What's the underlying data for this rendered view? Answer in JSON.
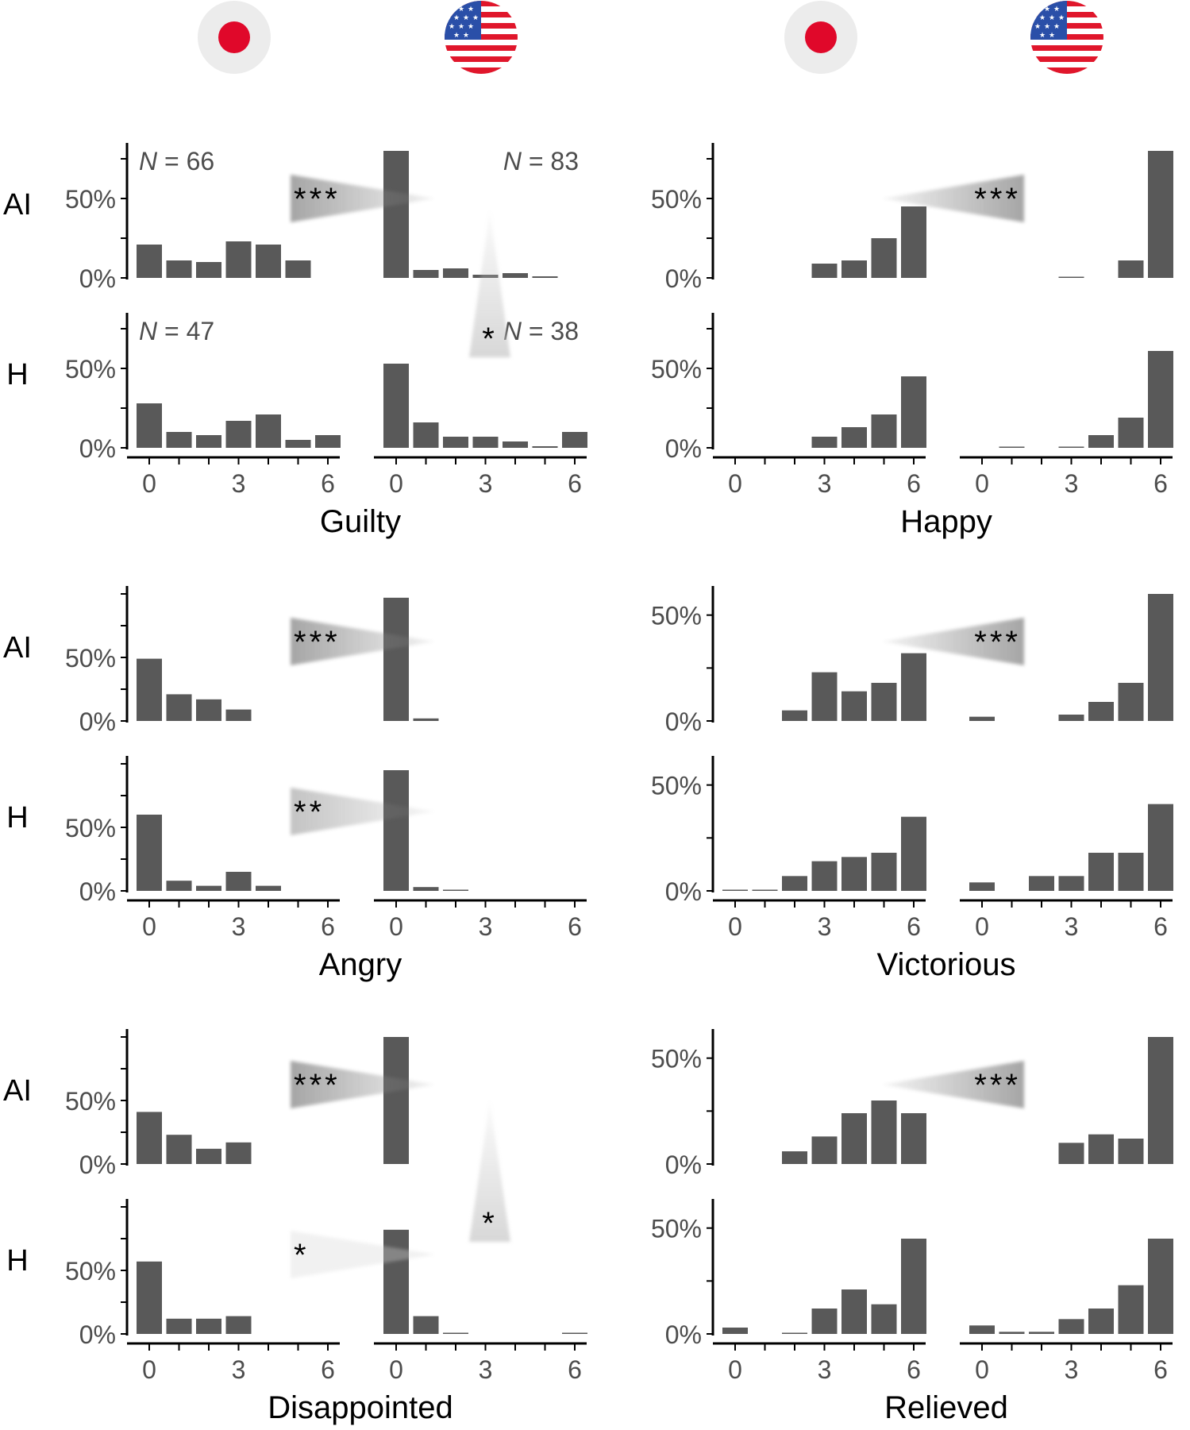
{
  "figure": {
    "flags": [
      {
        "country": "Japan",
        "icon": "japan-flag-icon"
      },
      {
        "country": "USA",
        "icon": "usa-flag-icon"
      },
      {
        "country": "Japan",
        "icon": "japan-flag-icon"
      },
      {
        "country": "USA",
        "icon": "usa-flag-icon"
      }
    ],
    "row_labels": [
      "AI",
      "H"
    ],
    "y_tick_labels": [
      "0%",
      "50%"
    ],
    "x_tick_labels": [
      "0",
      "3",
      "6"
    ],
    "n_prefix": "N",
    "colors": {
      "bar": "#595959",
      "axis": "#000000",
      "text": "#4d4d4d",
      "arrow": "#9a9a9a"
    }
  },
  "chart_data": [
    {
      "type": "bar",
      "title": "Guilty",
      "xlabel": "Guilty",
      "ylabel": "",
      "categories": [
        0,
        1,
        2,
        3,
        4,
        5,
        6
      ],
      "ylim": [
        0,
        80
      ],
      "series": [
        {
          "name": "AI Japan",
          "n": "= 66",
          "values": [
            21,
            11,
            10,
            23,
            21,
            11,
            0
          ]
        },
        {
          "name": "AI USA",
          "n": "= 83",
          "values": [
            80,
            5,
            6,
            2,
            3,
            1,
            0
          ]
        },
        {
          "name": "H Japan",
          "n": "= 47",
          "values": [
            28,
            10,
            8,
            17,
            21,
            5,
            8
          ]
        },
        {
          "name": "H USA",
          "n": "= 38",
          "values": [
            53,
            16,
            7,
            7,
            4,
            1,
            10
          ]
        }
      ],
      "annotations": [
        {
          "label": "***",
          "between": "AI Japan vs AI USA"
        },
        {
          "label": "*",
          "between": "AI USA vs H USA"
        }
      ]
    },
    {
      "type": "bar",
      "title": "Happy",
      "xlabel": "Happy",
      "ylabel": "",
      "categories": [
        0,
        1,
        2,
        3,
        4,
        5,
        6
      ],
      "ylim": [
        0,
        80
      ],
      "series": [
        {
          "name": "AI Japan",
          "values": [
            0,
            0,
            0,
            9,
            11,
            25,
            45
          ]
        },
        {
          "name": "AI USA",
          "values": [
            0,
            0,
            0,
            0.5,
            0,
            11,
            80
          ]
        },
        {
          "name": "H Japan",
          "values": [
            0,
            0,
            0,
            7,
            13,
            21,
            45
          ]
        },
        {
          "name": "H USA",
          "values": [
            0,
            0.5,
            0,
            0.5,
            8,
            19,
            61
          ]
        }
      ],
      "annotations": [
        {
          "label": "***",
          "between": "AI Japan vs AI USA"
        }
      ]
    },
    {
      "type": "bar",
      "title": "Angry",
      "xlabel": "Angry",
      "ylabel": "",
      "categories": [
        0,
        1,
        2,
        3,
        4,
        5,
        6
      ],
      "ylim": [
        0,
        100
      ],
      "series": [
        {
          "name": "AI Japan",
          "values": [
            49,
            21,
            17,
            9,
            0,
            0,
            0
          ]
        },
        {
          "name": "AI USA",
          "values": [
            97,
            2,
            0,
            0,
            0,
            0,
            0
          ]
        },
        {
          "name": "H Japan",
          "values": [
            60,
            8,
            4,
            15,
            4,
            0,
            0
          ]
        },
        {
          "name": "H USA",
          "values": [
            95,
            3,
            0.5,
            0,
            0,
            0,
            0
          ]
        }
      ],
      "annotations": [
        {
          "label": "***",
          "between": "AI Japan vs AI USA"
        },
        {
          "label": "**",
          "between": "H Japan vs H USA"
        }
      ]
    },
    {
      "type": "bar",
      "title": "Victorious",
      "xlabel": "Victorious",
      "ylabel": "",
      "categories": [
        0,
        1,
        2,
        3,
        4,
        5,
        6
      ],
      "ylim": [
        0,
        60
      ],
      "series": [
        {
          "name": "AI Japan",
          "values": [
            0,
            0,
            5,
            23,
            14,
            18,
            32
          ]
        },
        {
          "name": "AI USA",
          "values": [
            2,
            0,
            0,
            3,
            9,
            18,
            60
          ]
        },
        {
          "name": "H Japan",
          "values": [
            0.5,
            0.5,
            7,
            14,
            16,
            18,
            35
          ]
        },
        {
          "name": "H USA",
          "values": [
            4,
            0,
            7,
            7,
            18,
            18,
            41
          ]
        }
      ],
      "annotations": [
        {
          "label": "***",
          "between": "AI Japan vs AI USA"
        }
      ]
    },
    {
      "type": "bar",
      "title": "Disappointed",
      "xlabel": "Disappointed",
      "ylabel": "",
      "categories": [
        0,
        1,
        2,
        3,
        4,
        5,
        6
      ],
      "ylim": [
        0,
        100
      ],
      "series": [
        {
          "name": "AI Japan",
          "values": [
            41,
            23,
            12,
            17,
            0,
            0,
            0
          ]
        },
        {
          "name": "AI USA",
          "values": [
            100,
            0,
            0,
            0,
            0,
            0,
            0
          ]
        },
        {
          "name": "H Japan",
          "values": [
            57,
            12,
            12,
            14,
            0,
            0,
            0
          ]
        },
        {
          "name": "H USA",
          "values": [
            82,
            14,
            0.5,
            0,
            0,
            0,
            0.5
          ]
        }
      ],
      "annotations": [
        {
          "label": "***",
          "between": "AI Japan vs AI USA"
        },
        {
          "label": "*",
          "between": "H Japan vs H USA"
        },
        {
          "label": "*",
          "between": "AI USA vs H USA"
        }
      ]
    },
    {
      "type": "bar",
      "title": "Relieved",
      "xlabel": "Relieved",
      "ylabel": "",
      "categories": [
        0,
        1,
        2,
        3,
        4,
        5,
        6
      ],
      "ylim": [
        0,
        60
      ],
      "series": [
        {
          "name": "AI Japan",
          "values": [
            0,
            0,
            6,
            13,
            24,
            30,
            24
          ]
        },
        {
          "name": "AI USA",
          "values": [
            0,
            0,
            0,
            10,
            14,
            12,
            60
          ]
        },
        {
          "name": "H Japan",
          "values": [
            3,
            0,
            0.5,
            12,
            21,
            14,
            45
          ]
        },
        {
          "name": "H USA",
          "values": [
            4,
            1,
            1,
            7,
            12,
            23,
            45
          ]
        }
      ],
      "annotations": [
        {
          "label": "***",
          "between": "AI Japan vs AI USA"
        }
      ]
    }
  ]
}
